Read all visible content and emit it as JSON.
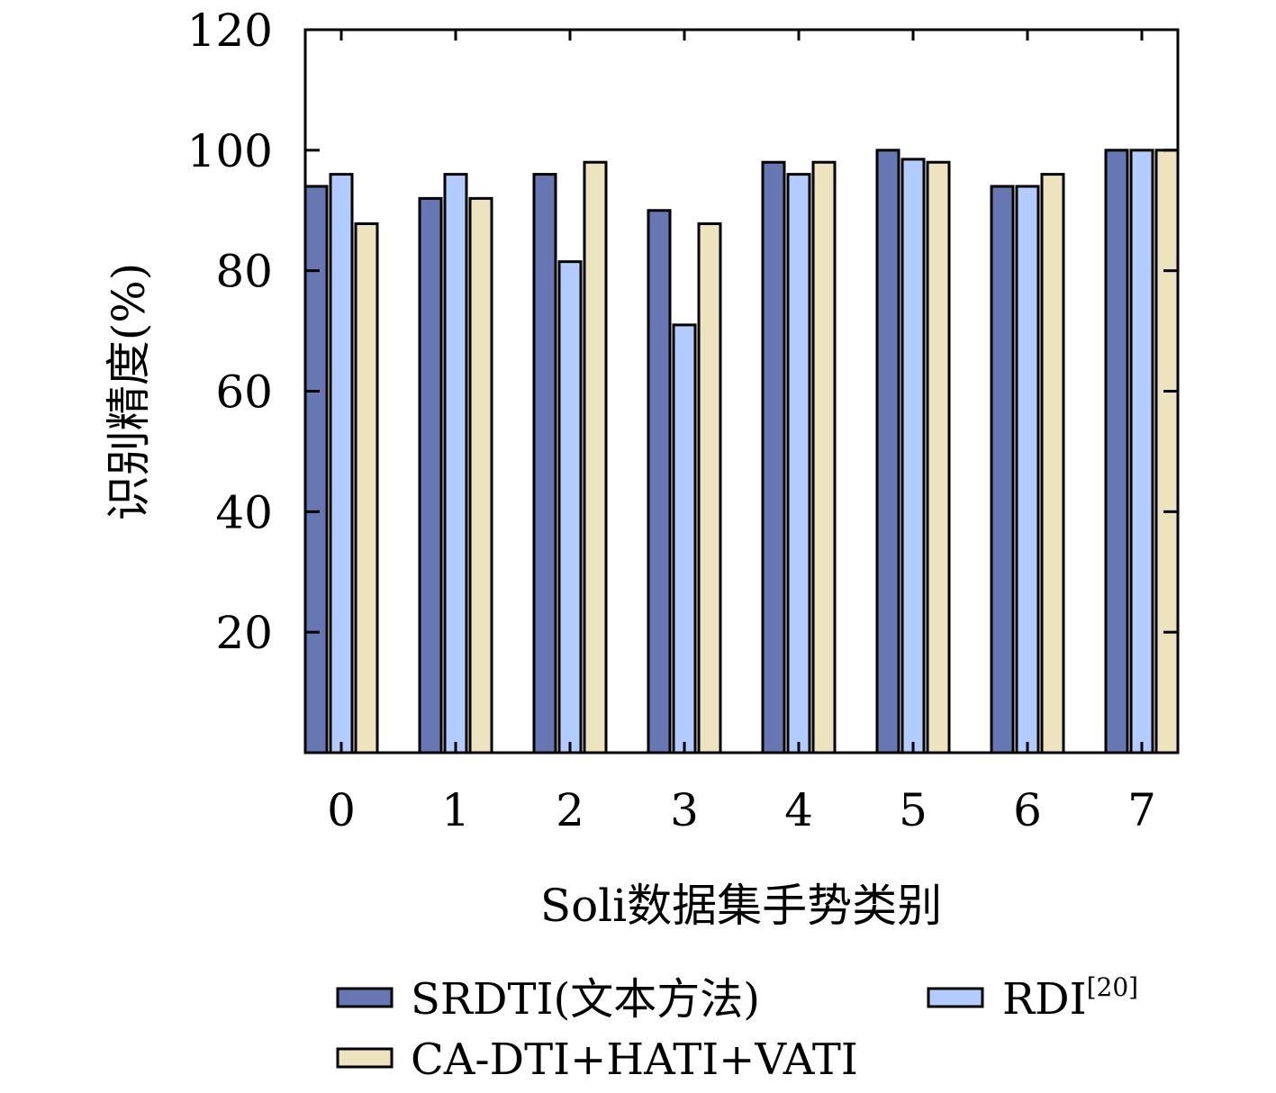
{
  "chart_data": {
    "type": "bar",
    "title": "",
    "xlabel": "Soli数据集手势类别",
    "ylabel": "识别精度(%)",
    "categories": [
      "0",
      "1",
      "2",
      "3",
      "4",
      "5",
      "6",
      "7"
    ],
    "ylim": [
      0,
      120
    ],
    "yticks": [
      20,
      40,
      60,
      80,
      100,
      120
    ],
    "yticklabels": [
      "20",
      "40",
      "60",
      "80",
      "100",
      "120"
    ],
    "grid": false,
    "legend_position": "bottom",
    "series": [
      {
        "name": "SRDTI(文本方法)",
        "color": "#6677b3",
        "values": [
          94,
          92,
          96,
          90,
          98,
          100,
          94,
          100
        ]
      },
      {
        "name": "RDI",
        "name_superscript": "[20]",
        "color": "#b3ccff",
        "values": [
          96,
          96,
          81.5,
          71,
          96,
          98.5,
          94,
          100
        ]
      },
      {
        "name": "CA-DTI+HATI+VATI",
        "color": "#ede3be",
        "values": [
          87.8,
          92,
          98,
          87.8,
          98,
          98,
          96,
          100
        ]
      }
    ]
  }
}
